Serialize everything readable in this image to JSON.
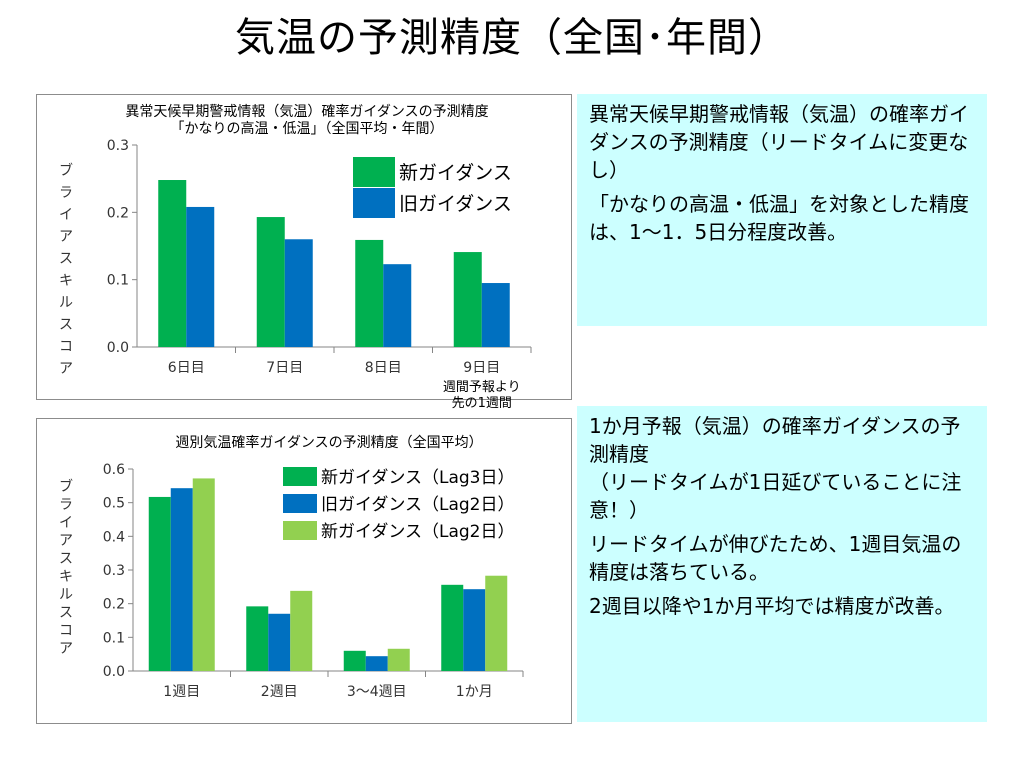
{
  "slide": {
    "title": "気温の予測精度（全国･年間）"
  },
  "notes": [
    {
      "paragraphs": [
        "異常天候早期警戒情報（気温）の確率ガイダンスの予測精度（リードタイムに変更なし）",
        "「かなりの高温・低温」を対象とした精度は、1～1．5日分程度改善。"
      ]
    },
    {
      "paragraphs": [
        "1か月予報（気温）の確率ガイダンスの予測精度",
        "（リードタイムが1日延びていることに注意！）",
        "リードタイムが伸びたため、1週目気温の精度は落ちている。",
        "2週目以降や1か月平均では精度が改善。"
      ]
    }
  ],
  "chart_data": [
    {
      "type": "bar",
      "title": "異常天候早期警戒情報（気温）確率ガイダンスの予測精度",
      "subtitle": "「かなりの高温・低温」（全国平均・年間）",
      "ylabel": "ブライアスキルスコア",
      "xlabel": "",
      "ylim": [
        0,
        0.3
      ],
      "yticks": [
        "0.0",
        "0.1",
        "0.2",
        "0.3"
      ],
      "categories": [
        "6日目",
        "7日目",
        "8日目",
        "9日目"
      ],
      "annotation": "週間予報より\n先の1週間",
      "legend_position": "top-right",
      "grid": false,
      "series": [
        {
          "name": "新ガイダンス",
          "color": "#00b050",
          "values": [
            0.248,
            0.193,
            0.159,
            0.141
          ]
        },
        {
          "name": "旧ガイダンス",
          "color": "#0070c0",
          "values": [
            0.208,
            0.16,
            0.123,
            0.095
          ]
        }
      ]
    },
    {
      "type": "bar",
      "title": "週別気温確率ガイダンスの予測精度（全国平均）",
      "subtitle": "",
      "ylabel": "ブライアスキルスコア",
      "xlabel": "",
      "ylim": [
        0,
        0.6
      ],
      "yticks": [
        "0.0",
        "0.1",
        "0.2",
        "0.3",
        "0.4",
        "0.5",
        "0.6"
      ],
      "categories": [
        "1週目",
        "2週目",
        "3～4週目",
        "1か月"
      ],
      "legend_position": "top-right",
      "grid": false,
      "series": [
        {
          "name": "新ガイダンス（Lag3日）",
          "color": "#00b050",
          "values": [
            0.517,
            0.192,
            0.06,
            0.256
          ]
        },
        {
          "name": "旧ガイダンス（Lag2日）",
          "color": "#0070c0",
          "values": [
            0.543,
            0.17,
            0.044,
            0.243
          ]
        },
        {
          "name": "新ガイダンス（Lag2日）",
          "color": "#92d050",
          "values": [
            0.572,
            0.238,
            0.066,
            0.283
          ]
        }
      ]
    }
  ]
}
